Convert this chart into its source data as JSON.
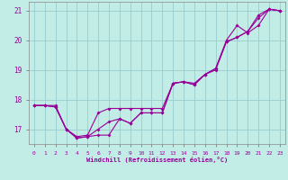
{
  "xlabel": "Windchill (Refroidissement éolien,°C)",
  "background_color": "#c2ece6",
  "grid_color": "#99cccc",
  "line_color": "#990099",
  "xlim": [
    -0.5,
    23.5
  ],
  "ylim": [
    16.5,
    21.3
  ],
  "xticks": [
    0,
    1,
    2,
    3,
    4,
    5,
    6,
    7,
    8,
    9,
    10,
    11,
    12,
    13,
    14,
    15,
    16,
    17,
    18,
    19,
    20,
    21,
    22,
    23
  ],
  "yticks": [
    17,
    18,
    19,
    20,
    21
  ],
  "line1_x": [
    0,
    1,
    2,
    3,
    4,
    5,
    6,
    7,
    8,
    9,
    10,
    11,
    12,
    13,
    14,
    15,
    16,
    17,
    18,
    19,
    20,
    21,
    22,
    23
  ],
  "line1_y": [
    17.8,
    17.8,
    17.8,
    17.0,
    16.75,
    16.8,
    17.55,
    17.7,
    17.7,
    17.7,
    17.7,
    17.7,
    17.7,
    18.55,
    18.6,
    18.55,
    18.85,
    19.05,
    19.95,
    20.1,
    20.3,
    20.85,
    21.05,
    21.0
  ],
  "line2_x": [
    0,
    1,
    2,
    3,
    4,
    5,
    6,
    7,
    8,
    9,
    10,
    11,
    12,
    13,
    14,
    15,
    16,
    17,
    18,
    19,
    20,
    21,
    22,
    23
  ],
  "line2_y": [
    17.8,
    17.8,
    17.75,
    17.0,
    16.7,
    16.75,
    17.0,
    17.25,
    17.35,
    17.2,
    17.55,
    17.55,
    17.55,
    18.55,
    18.6,
    18.5,
    18.85,
    19.0,
    19.95,
    20.1,
    20.3,
    20.75,
    21.05,
    21.0
  ],
  "line3_x": [
    0,
    1,
    2,
    3,
    4,
    5,
    6,
    7,
    8,
    9,
    10,
    11,
    12,
    13,
    14,
    15,
    16,
    17,
    18,
    19,
    20,
    21,
    22,
    23
  ],
  "line3_y": [
    17.8,
    17.8,
    17.75,
    17.0,
    16.7,
    16.75,
    16.8,
    16.8,
    17.35,
    17.2,
    17.55,
    17.55,
    17.55,
    18.55,
    18.6,
    18.5,
    18.85,
    19.05,
    20.0,
    20.5,
    20.25,
    20.5,
    21.05,
    21.0
  ]
}
